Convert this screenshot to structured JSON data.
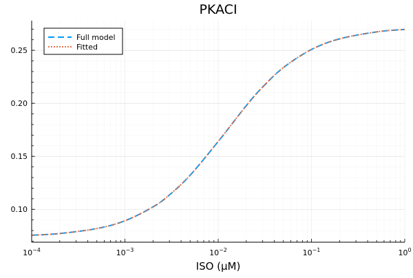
{
  "chart_data": {
    "type": "line",
    "title": "PKACI",
    "xlabel": "ISO (μM)",
    "ylabel": "",
    "xscale": "log10",
    "xlim": [
      0.0001,
      1
    ],
    "ylim": [
      0.069,
      0.278
    ],
    "xticks": [
      {
        "value": 0.0001,
        "base": "10",
        "exp": "−4"
      },
      {
        "value": 0.001,
        "base": "10",
        "exp": "−3"
      },
      {
        "value": 0.01,
        "base": "10",
        "exp": "−2"
      },
      {
        "value": 0.1,
        "base": "10",
        "exp": "−1"
      },
      {
        "value": 1,
        "base": "10",
        "exp": "0"
      }
    ],
    "yticks": [
      {
        "value": 0.1,
        "label": "0.10"
      },
      {
        "value": 0.15,
        "label": "0.15"
      },
      {
        "value": 0.2,
        "label": "0.20"
      },
      {
        "value": 0.25,
        "label": "0.25"
      }
    ],
    "grid": true,
    "legend_position": "top-left",
    "x": [
      0.0001,
      0.0002,
      0.0005,
      0.001,
      0.002,
      0.003,
      0.005,
      0.01,
      0.02,
      0.03,
      0.05,
      0.1,
      0.2,
      0.5,
      1
    ],
    "series": [
      {
        "name": "Full model",
        "color": "#009AFA",
        "style": "dash",
        "values": [
          0.0756,
          0.0772,
          0.0819,
          0.0892,
          0.1023,
          0.1136,
          0.1322,
          0.164,
          0.1978,
          0.2154,
          0.2337,
          0.2508,
          0.2608,
          0.2674,
          0.2697
        ]
      },
      {
        "name": "Fitted",
        "color": "#E36F47",
        "style": "dot",
        "values": [
          0.0756,
          0.0772,
          0.0819,
          0.0892,
          0.1023,
          0.1136,
          0.1322,
          0.164,
          0.1978,
          0.2154,
          0.2337,
          0.2508,
          0.2608,
          0.2674,
          0.2697
        ]
      }
    ]
  }
}
